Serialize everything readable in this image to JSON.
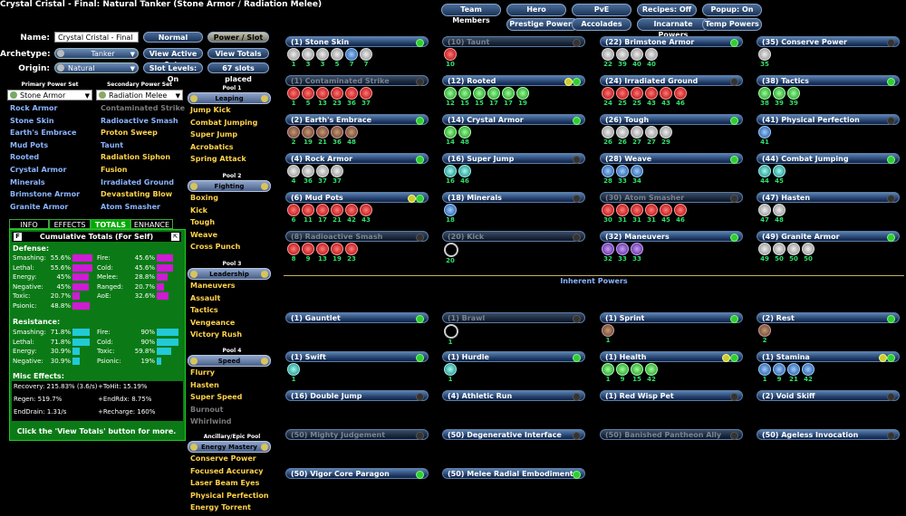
{
  "title": "Crystal Cristal - Final: Natural Tanker (Stone Armor / Radiation Melee)",
  "top_buttons": [
    "Team Members",
    "Hero",
    "PvE",
    "Recipes: Off",
    "Popup: On",
    "Prestige Powers",
    "Accolades",
    "Incarnate Powers",
    "Temp Powers"
  ],
  "form": {
    "name_label": "Name:",
    "name_value": "Crystal Cristal - Final",
    "archetype_label": "Archetype:",
    "archetype_value": "Tanker",
    "origin_label": "Origin:",
    "origin_value": "Natural",
    "normal_btn": "Normal",
    "power_slot_btn": "Power / Slot",
    "view_active_sets": "View Active Sets",
    "view_totals": "View Totals",
    "slot_levels": "Slot Levels: On",
    "slots_placed": "67 slots placed"
  },
  "primary": {
    "header": "Primary Power Set",
    "set": "Stone Armor",
    "powers": [
      {
        "name": "Rock Armor",
        "c": "blue"
      },
      {
        "name": "Stone Skin",
        "c": "blue"
      },
      {
        "name": "Earth's Embrace",
        "c": "blue"
      },
      {
        "name": "Mud Pots",
        "c": "blue"
      },
      {
        "name": "Rooted",
        "c": "blue"
      },
      {
        "name": "Crystal Armor",
        "c": "blue"
      },
      {
        "name": "Minerals",
        "c": "blue"
      },
      {
        "name": "Brimstone Armor",
        "c": "blue"
      },
      {
        "name": "Granite Armor",
        "c": "blue"
      }
    ]
  },
  "secondary": {
    "header": "Secondary Power Set",
    "set": "Radiation Melee",
    "powers": [
      {
        "name": "Contaminated Strike",
        "c": "grey"
      },
      {
        "name": "Radioactive Smash",
        "c": "blue"
      },
      {
        "name": "Proton Sweep",
        "c": "gold"
      },
      {
        "name": "Taunt",
        "c": "blue"
      },
      {
        "name": "Radiation Siphon",
        "c": "gold"
      },
      {
        "name": "Fusion",
        "c": "gold"
      },
      {
        "name": "Irradiated Ground",
        "c": "blue"
      },
      {
        "name": "Devastating Blow",
        "c": "gold"
      },
      {
        "name": "Atom Smasher",
        "c": "blue"
      }
    ]
  },
  "pools": [
    {
      "header": "Pool 1",
      "set": "Leaping",
      "powers": [
        {
          "name": "Jump Kick",
          "c": "gold"
        },
        {
          "name": "Combat Jumping",
          "c": "gold"
        },
        {
          "name": "Super Jump",
          "c": "gold"
        },
        {
          "name": "Acrobatics",
          "c": "gold"
        },
        {
          "name": "Spring Attack",
          "c": "gold"
        }
      ]
    },
    {
      "header": "Pool 2",
      "set": "Fighting",
      "powers": [
        {
          "name": "Boxing",
          "c": "gold"
        },
        {
          "name": "Kick",
          "c": "gold"
        },
        {
          "name": "Tough",
          "c": "gold"
        },
        {
          "name": "Weave",
          "c": "gold"
        },
        {
          "name": "Cross Punch",
          "c": "gold"
        }
      ]
    },
    {
      "header": "Pool 3",
      "set": "Leadership",
      "powers": [
        {
          "name": "Maneuvers",
          "c": "gold"
        },
        {
          "name": "Assault",
          "c": "gold"
        },
        {
          "name": "Tactics",
          "c": "gold"
        },
        {
          "name": "Vengeance",
          "c": "gold"
        },
        {
          "name": "Victory Rush",
          "c": "gold"
        }
      ]
    },
    {
      "header": "Pool 4",
      "set": "Speed",
      "powers": [
        {
          "name": "Flurry",
          "c": "gold"
        },
        {
          "name": "Hasten",
          "c": "gold"
        },
        {
          "name": "Super Speed",
          "c": "gold"
        },
        {
          "name": "Burnout",
          "c": "grey"
        },
        {
          "name": "Whirlwind",
          "c": "grey"
        }
      ]
    },
    {
      "header": "Ancillary/Epic Pool",
      "set": "Energy Mastery",
      "powers": [
        {
          "name": "Conserve Power",
          "c": "gold"
        },
        {
          "name": "Focused Accuracy",
          "c": "gold"
        },
        {
          "name": "Laser Beam Eyes",
          "c": "gold"
        },
        {
          "name": "Physical Perfection",
          "c": "gold"
        },
        {
          "name": "Energy Torrent",
          "c": "gold"
        }
      ]
    }
  ],
  "tabs": [
    "INFO",
    "EFFECTS",
    "TOTALS",
    "ENHANCE"
  ],
  "totals": {
    "header": "Cumulative Totals (For Self)",
    "defense_title": "Defense:",
    "defense": [
      {
        "n": "Smashing:",
        "v": "55.6%",
        "p": 0.93
      },
      {
        "n": "Fire:",
        "v": "45.6%",
        "p": 0.76
      },
      {
        "n": "Lethal:",
        "v": "55.6%",
        "p": 0.93
      },
      {
        "n": "Cold:",
        "v": "45.6%",
        "p": 0.76
      },
      {
        "n": "Energy:",
        "v": "45%",
        "p": 0.75
      },
      {
        "n": "Melee:",
        "v": "28.8%",
        "p": 0.48
      },
      {
        "n": "Negative:",
        "v": "45%",
        "p": 0.75
      },
      {
        "n": "Ranged:",
        "v": "20.7%",
        "p": 0.35
      },
      {
        "n": "Toxic:",
        "v": "20.7%",
        "p": 0.35
      },
      {
        "n": "AoE:",
        "v": "32.6%",
        "p": 0.54
      },
      {
        "n": "Psionic:",
        "v": "48.8%",
        "p": 0.81
      }
    ],
    "resistance_title": "Resistance:",
    "resistance": [
      {
        "n": "Smashing:",
        "v": "71.8%",
        "p": 0.8
      },
      {
        "n": "Fire:",
        "v": "90%",
        "p": 1.0
      },
      {
        "n": "Lethal:",
        "v": "71.8%",
        "p": 0.8
      },
      {
        "n": "Cold:",
        "v": "90%",
        "p": 1.0
      },
      {
        "n": "Energy:",
        "v": "30.9%",
        "p": 0.34
      },
      {
        "n": "Toxic:",
        "v": "59.8%",
        "p": 0.66
      },
      {
        "n": "Negative:",
        "v": "30.9%",
        "p": 0.34
      },
      {
        "n": "Psionic:",
        "v": "19%",
        "p": 0.21
      }
    ],
    "misc_title": "Misc Effects:",
    "misc": [
      "Recovery: 215.83% (3.6/s)",
      "+ToHit: 15.19%",
      "Regen: 519.7%",
      "+EndRdx: 8.75%",
      "EndDrain: 1.31/s",
      "+Recharge: 160%"
    ],
    "footer": "Click the 'View Totals' button for more."
  },
  "power_slots": [
    {
      "col": 0,
      "row": 0,
      "label": "(1) Stone Skin",
      "dim": false,
      "dot": "g",
      "slots": [
        [
          "stone",
          1
        ],
        [
          "stone",
          3
        ],
        [
          "stone",
          3
        ],
        [
          "stone",
          5
        ],
        [
          "blue",
          7
        ],
        [
          "stone",
          7
        ]
      ]
    },
    {
      "col": 1,
      "row": 0,
      "label": "(10) Taunt",
      "dim": true,
      "dot": "",
      "slots": [
        [
          "red",
          10
        ]
      ]
    },
    {
      "col": 2,
      "row": 0,
      "label": "(22) Brimstone Armor",
      "dim": false,
      "dot": "g",
      "slots": [
        [
          "stone",
          22
        ],
        [
          "stone",
          39
        ],
        [
          "stone",
          40
        ],
        [
          "stone",
          40
        ]
      ]
    },
    {
      "col": 3,
      "row": 0,
      "label": "(35) Conserve Power",
      "dim": false,
      "dot": "",
      "slots": [
        [
          "stone",
          35
        ]
      ]
    },
    {
      "col": 0,
      "row": 1,
      "label": "(1) Contaminated Strike",
      "dim": true,
      "dot": "",
      "slots": [
        [
          "red",
          1
        ],
        [
          "red",
          5
        ],
        [
          "red",
          13
        ],
        [
          "red",
          23
        ],
        [
          "red",
          36
        ],
        [
          "red",
          37
        ]
      ]
    },
    {
      "col": 1,
      "row": 1,
      "label": "(12) Rooted",
      "dim": false,
      "dot": "yg",
      "slots": [
        [
          "green",
          12
        ],
        [
          "green",
          15
        ],
        [
          "green",
          15
        ],
        [
          "green",
          17
        ],
        [
          "green",
          17
        ],
        [
          "green",
          19
        ]
      ]
    },
    {
      "col": 2,
      "row": 1,
      "label": "(24) Irradiated Ground",
      "dim": false,
      "dot": "",
      "slots": [
        [
          "red",
          24
        ],
        [
          "red",
          25
        ],
        [
          "red",
          25
        ],
        [
          "red",
          43
        ],
        [
          "red",
          43
        ],
        [
          "red",
          46
        ]
      ]
    },
    {
      "col": 3,
      "row": 1,
      "label": "(38) Tactics",
      "dim": false,
      "dot": "g",
      "slots": [
        [
          "green",
          38
        ],
        [
          "green",
          39
        ],
        [
          "green",
          39
        ]
      ]
    },
    {
      "col": 0,
      "row": 2,
      "label": "(2) Earth's Embrace",
      "dim": false,
      "dot": "g",
      "slots": [
        [
          "brown",
          2
        ],
        [
          "brown",
          19
        ],
        [
          "brown",
          21
        ],
        [
          "brown",
          36
        ],
        [
          "brown",
          48
        ]
      ]
    },
    {
      "col": 1,
      "row": 2,
      "label": "(14) Crystal Armor",
      "dim": false,
      "dot": "g",
      "slots": [
        [
          "green",
          14
        ],
        [
          "green",
          48
        ]
      ]
    },
    {
      "col": 2,
      "row": 2,
      "label": "(26) Tough",
      "dim": false,
      "dot": "g",
      "slots": [
        [
          "stone",
          26
        ],
        [
          "stone",
          26
        ],
        [
          "stone",
          27
        ],
        [
          "stone",
          27
        ],
        [
          "stone",
          29
        ]
      ]
    },
    {
      "col": 3,
      "row": 2,
      "label": "(41) Physical Perfection",
      "dim": false,
      "dot": "",
      "slots": [
        [
          "blue",
          41
        ]
      ]
    },
    {
      "col": 0,
      "row": 3,
      "label": "(4) Rock Armor",
      "dim": false,
      "dot": "g",
      "slots": [
        [
          "stone",
          4
        ],
        [
          "stone",
          36
        ],
        [
          "stone",
          37
        ],
        [
          "stone",
          37
        ]
      ]
    },
    {
      "col": 1,
      "row": 3,
      "label": "(16) Super Jump",
      "dim": false,
      "dot": "",
      "slots": [
        [
          "teal",
          16
        ],
        [
          "teal",
          46
        ]
      ]
    },
    {
      "col": 2,
      "row": 3,
      "label": "(28) Weave",
      "dim": false,
      "dot": "g",
      "slots": [
        [
          "blue",
          28
        ],
        [
          "blue",
          33
        ],
        [
          "blue",
          34
        ]
      ]
    },
    {
      "col": 3,
      "row": 3,
      "label": "(44) Combat Jumping",
      "dim": false,
      "dot": "g",
      "slots": [
        [
          "teal",
          44
        ],
        [
          "teal",
          45
        ]
      ]
    },
    {
      "col": 0,
      "row": 4,
      "label": "(6) Mud Pots",
      "dim": false,
      "dot": "yg",
      "slots": [
        [
          "red",
          6
        ],
        [
          "red",
          11
        ],
        [
          "red",
          17
        ],
        [
          "red",
          21
        ],
        [
          "red",
          42
        ],
        [
          "red",
          43
        ]
      ]
    },
    {
      "col": 1,
      "row": 4,
      "label": "(18) Minerals",
      "dim": false,
      "dot": "",
      "slots": [
        [
          "blue",
          18
        ]
      ]
    },
    {
      "col": 2,
      "row": 4,
      "label": "(30) Atom Smasher",
      "dim": true,
      "dot": "",
      "slots": [
        [
          "red",
          30
        ],
        [
          "red",
          31
        ],
        [
          "red",
          31
        ],
        [
          "red",
          31
        ],
        [
          "red",
          45
        ],
        [
          "red",
          46
        ]
      ]
    },
    {
      "col": 3,
      "row": 4,
      "label": "(47) Hasten",
      "dim": false,
      "dot": "",
      "slots": [
        [
          "stone",
          47
        ],
        [
          "stone",
          48
        ]
      ]
    },
    {
      "col": 0,
      "row": 5,
      "label": "(8) Radioactive Smash",
      "dim": true,
      "dot": "",
      "slots": [
        [
          "red",
          8
        ],
        [
          "red",
          9
        ],
        [
          "red",
          13
        ],
        [
          "red",
          19
        ],
        [
          "red",
          23
        ]
      ]
    },
    {
      "col": 1,
      "row": 5,
      "label": "(20) Kick",
      "dim": true,
      "dot": "",
      "slots": [
        [
          "ring",
          20
        ]
      ]
    },
    {
      "col": 2,
      "row": 5,
      "label": "(32) Maneuvers",
      "dim": false,
      "dot": "g",
      "slots": [
        [
          "purple",
          32
        ],
        [
          "purple",
          33
        ],
        [
          "purple",
          33
        ]
      ]
    },
    {
      "col": 3,
      "row": 5,
      "label": "(49) Granite Armor",
      "dim": false,
      "dot": "g",
      "slots": [
        [
          "stone",
          49
        ],
        [
          "stone",
          50
        ],
        [
          "stone",
          50
        ],
        [
          "stone",
          50
        ]
      ]
    }
  ],
  "inherent_title": "Inherent Powers",
  "inherent_slots": [
    {
      "col": 0,
      "row": 0,
      "label": "(1) Gauntlet",
      "dim": false,
      "dot": "g",
      "slots": []
    },
    {
      "col": 1,
      "row": 0,
      "label": "(1) Brawl",
      "dim": true,
      "dot": "",
      "slots": [
        [
          "ring",
          1
        ]
      ]
    },
    {
      "col": 2,
      "row": 0,
      "label": "(1) Sprint",
      "dim": false,
      "dot": "g",
      "slots": [
        [
          "brown",
          1
        ]
      ]
    },
    {
      "col": 3,
      "row": 0,
      "label": "(2) Rest",
      "dim": false,
      "dot": "g",
      "slots": [
        [
          "brown",
          2
        ]
      ]
    },
    {
      "col": 0,
      "row": 1,
      "label": "(1) Swift",
      "dim": false,
      "dot": "g",
      "slots": [
        [
          "teal",
          1
        ]
      ]
    },
    {
      "col": 1,
      "row": 1,
      "label": "(1) Hurdle",
      "dim": false,
      "dot": "g",
      "slots": [
        [
          "teal",
          1
        ]
      ]
    },
    {
      "col": 2,
      "row": 1,
      "label": "(1) Health",
      "dim": false,
      "dot": "yg",
      "slots": [
        [
          "green",
          1
        ],
        [
          "green",
          9
        ],
        [
          "green",
          15
        ],
        [
          "green",
          42
        ]
      ]
    },
    {
      "col": 3,
      "row": 1,
      "label": "(1) Stamina",
      "dim": false,
      "dot": "yg",
      "slots": [
        [
          "blue",
          1
        ],
        [
          "blue",
          9
        ],
        [
          "blue",
          21
        ],
        [
          "blue",
          42
        ]
      ]
    },
    {
      "col": 0,
      "row": 2,
      "label": "(16) Double Jump",
      "dim": false,
      "dot": "",
      "slots": []
    },
    {
      "col": 1,
      "row": 2,
      "label": "(4) Athletic Run",
      "dim": false,
      "dot": "",
      "slots": []
    },
    {
      "col": 2,
      "row": 2,
      "label": "(1) Red Wisp Pet",
      "dim": false,
      "dot": "",
      "slots": []
    },
    {
      "col": 3,
      "row": 2,
      "label": "(2) Void Skiff",
      "dim": false,
      "dot": "",
      "slots": []
    },
    {
      "col": 0,
      "row": 3,
      "label": "(50) Mighty Judgement",
      "dim": true,
      "dot": "",
      "slots": []
    },
    {
      "col": 1,
      "row": 3,
      "label": "(50) Degenerative Interface",
      "dim": false,
      "dot": "",
      "slots": []
    },
    {
      "col": 2,
      "row": 3,
      "label": "(50) Banished Pantheon Ally",
      "dim": true,
      "dot": "",
      "slots": []
    },
    {
      "col": 3,
      "row": 3,
      "label": "(50) Ageless Invocation",
      "dim": false,
      "dot": "",
      "slots": []
    },
    {
      "col": 0,
      "row": 4,
      "label": "(50) Vigor Core Paragon",
      "dim": false,
      "dot": "g",
      "slots": []
    },
    {
      "col": 1,
      "row": 4,
      "label": "(50) Melee Radial Embodiment",
      "dim": false,
      "dot": "g",
      "slots": []
    }
  ]
}
